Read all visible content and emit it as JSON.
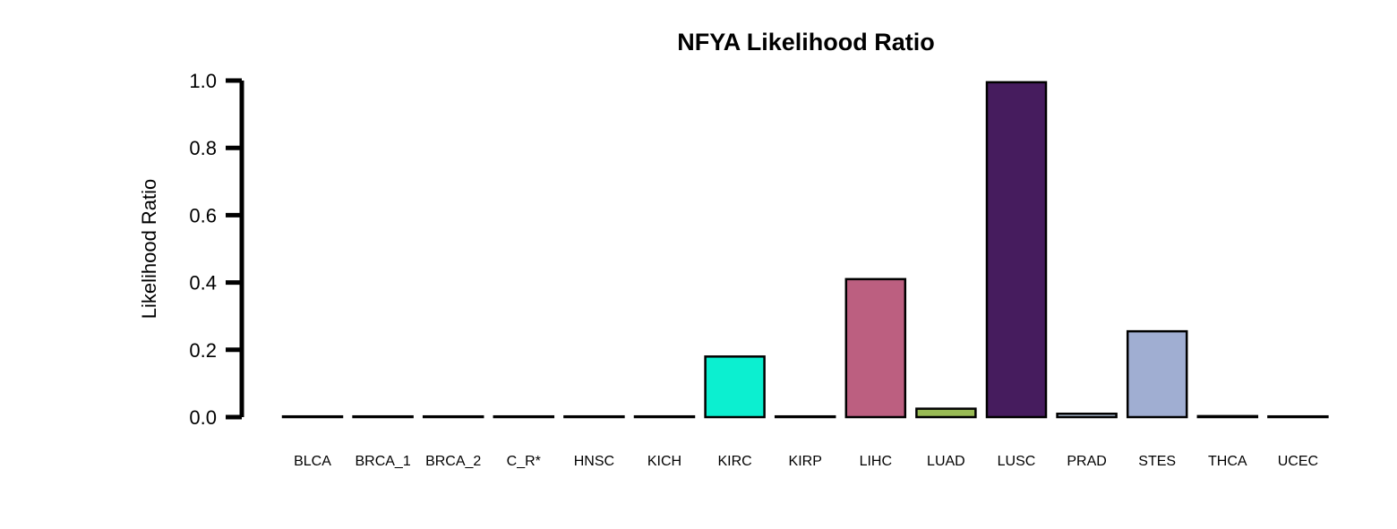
{
  "chart_data": {
    "type": "bar",
    "title": "NFYA Likelihood Ratio",
    "xlabel": "",
    "ylabel": "Likelihood Ratio",
    "ylim": [
      0,
      1.0
    ],
    "yticks": [
      "0.0",
      "0.2",
      "0.4",
      "0.6",
      "0.8",
      "1.0"
    ],
    "grid": false,
    "legend": "none",
    "categories": [
      "BLCA",
      "BRCA_1",
      "BRCA_2",
      "C_R*",
      "HNSC",
      "KICH",
      "KIRC",
      "KIRP",
      "LIHC",
      "LUAD",
      "LUSC",
      "PRAD",
      "STES",
      "THCA",
      "UCEC"
    ],
    "values": [
      0.0,
      0.0,
      0.0,
      0.0,
      0.0,
      0.0,
      0.18,
      0.0,
      0.41,
      0.025,
      0.995,
      0.01,
      0.255,
      0.003,
      0.0
    ],
    "colors": [
      "#ffffff",
      "#ffffff",
      "#ffffff",
      "#ffffff",
      "#ffffff",
      "#ffffff",
      "#0cefd0",
      "#ffffff",
      "#bc5f80",
      "#99bb55",
      "#461c5e",
      "#b8c8e0",
      "#a0aed2",
      "#d8c8a0",
      "#ffffff"
    ],
    "outline_color": "#000000"
  }
}
